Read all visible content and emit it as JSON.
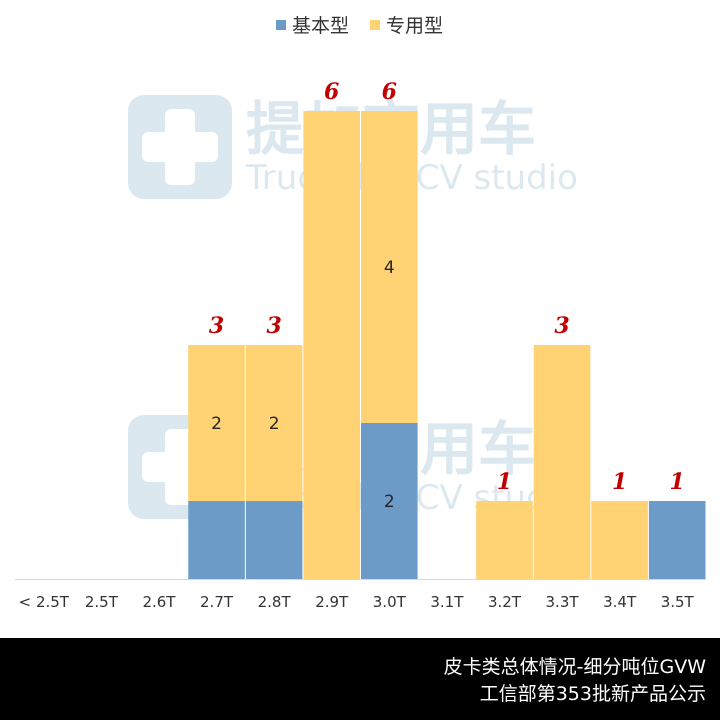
{
  "chart_data": {
    "type": "bar",
    "stacked": true,
    "categories": [
      "< 2.5T",
      "2.5T",
      "2.6T",
      "2.7T",
      "2.8T",
      "2.9T",
      "3.0T",
      "3.1T",
      "3.2T",
      "3.3T",
      "3.4T",
      "3.5T"
    ],
    "series": [
      {
        "name": "基本型",
        "color": "#6b9bc6",
        "values": [
          0,
          0,
          0,
          1,
          1,
          0,
          2,
          0,
          0,
          0,
          0,
          1
        ]
      },
      {
        "name": "专用型",
        "color": "#ffd273",
        "values": [
          0,
          0,
          0,
          2,
          2,
          6,
          4,
          0,
          1,
          3,
          1,
          0
        ]
      }
    ],
    "totals": [
      0,
      0,
      0,
      3,
      3,
      6,
      6,
      0,
      1,
      3,
      1,
      1
    ],
    "ylim": [
      0,
      7
    ],
    "legend": "top-center",
    "grid": false,
    "xlabel": "",
    "ylabel": ""
  },
  "watermark": {
    "cn": "提加商用车",
    "en": "TruckPlus CV studio"
  },
  "footer": {
    "line1": "皮卡类总体情况-细分吨位GVW",
    "line2": "工信部第353批新产品公示"
  }
}
